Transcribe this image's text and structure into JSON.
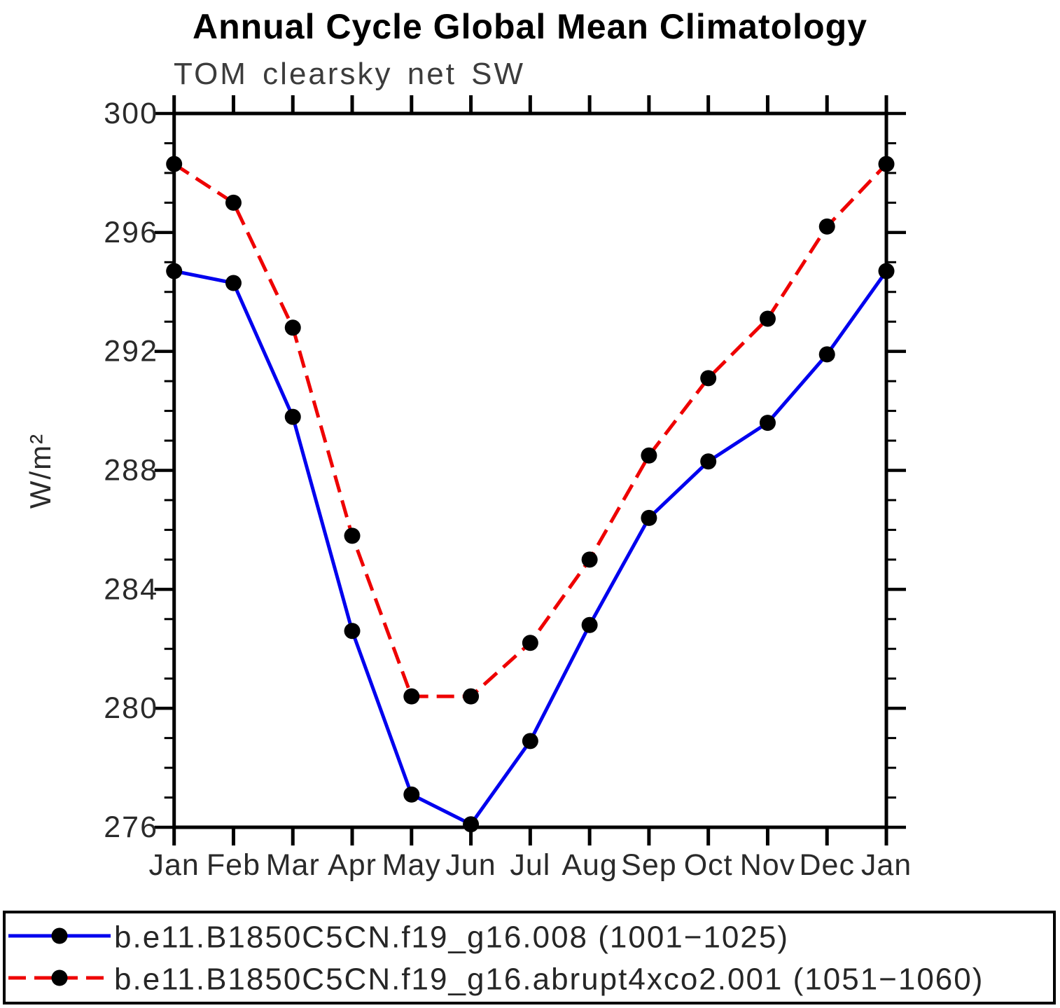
{
  "chart_data": {
    "type": "line",
    "title": "Annual Cycle Global Mean Climatology",
    "subtitle": "TOM clearsky net SW",
    "ylabel": "W/m²",
    "xlabel": "",
    "categories": [
      "Jan",
      "Feb",
      "Mar",
      "Apr",
      "May",
      "Jun",
      "Jul",
      "Aug",
      "Sep",
      "Oct",
      "Nov",
      "Dec",
      "Jan"
    ],
    "ylim": [
      276,
      300
    ],
    "ytick_major_step": 4,
    "ytick_minor_step": 1,
    "ytick_labels": [
      "276",
      "280",
      "284",
      "288",
      "292",
      "296",
      "300"
    ],
    "grid": false,
    "legend_position": "bottom",
    "series": [
      {
        "name": "b.e11.B1850C5CN.f19_g16.008 (1001−1025)",
        "color": "#0000ee",
        "style": "solid",
        "marker": "black-dot",
        "marker_color": "#000000",
        "values": [
          294.7,
          294.3,
          289.8,
          282.6,
          277.1,
          276.1,
          278.9,
          282.8,
          286.4,
          288.3,
          289.6,
          291.9,
          294.7
        ]
      },
      {
        "name": "b.e11.B1850C5CN.f19_g16.abrupt4xco2.001 (1051−1060)",
        "color": "#ee0000",
        "style": "dashed",
        "marker": "black-dot",
        "marker_color": "#000000",
        "values": [
          298.3,
          297.0,
          292.8,
          285.8,
          280.4,
          280.4,
          282.2,
          285.0,
          288.5,
          291.1,
          293.1,
          296.2,
          298.3
        ]
      }
    ]
  }
}
